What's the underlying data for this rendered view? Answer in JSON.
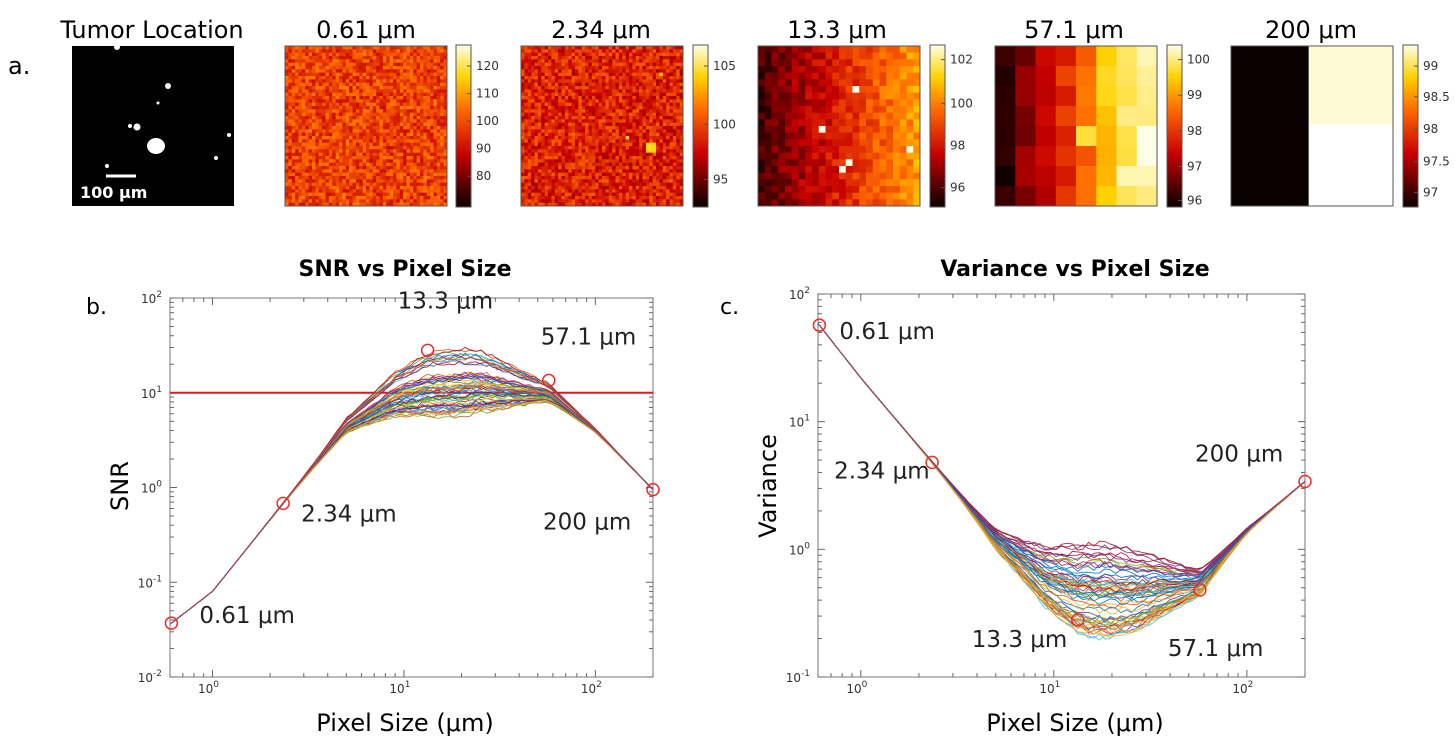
{
  "panel_labels": {
    "a": "a.",
    "b": "b.",
    "c": "c."
  },
  "maps": {
    "scale_bar_label": "100 μm",
    "items": [
      {
        "title": "Tumor Location",
        "colorbar_ticks": []
      },
      {
        "title": "0.61 μm",
        "colorbar_ticks": [
          "120",
          "110",
          "100",
          "90",
          "80"
        ]
      },
      {
        "title": "2.34 μm",
        "colorbar_ticks": [
          "105",
          "100",
          "95"
        ]
      },
      {
        "title": "13.3 μm",
        "colorbar_ticks": [
          "102",
          "100",
          "98",
          "96"
        ]
      },
      {
        "title": "57.1 μm",
        "colorbar_ticks": [
          "100",
          "99",
          "98",
          "97",
          "96"
        ]
      },
      {
        "title": "200 μm",
        "colorbar_ticks": [
          "99",
          "98.5",
          "98",
          "97.5",
          "97"
        ]
      }
    ]
  },
  "chart_data": [
    {
      "type": "line",
      "title": "SNR vs Pixel Size",
      "xlabel": "Pixel Size (μm)",
      "ylabel": "SNR",
      "xscale": "log",
      "yscale": "log",
      "xlim": [
        0.6,
        200
      ],
      "ylim": [
        0.01,
        100
      ],
      "xticks": [
        "10",
        "10",
        "10"
      ],
      "xtick_exps": [
        "0",
        "1",
        "2"
      ],
      "yticks": [
        "10",
        "10",
        "10",
        "10",
        "10"
      ],
      "ytick_exps": [
        "-2",
        "-1",
        "0",
        "1",
        "2"
      ],
      "threshold_line": 10,
      "curve_count": 60,
      "mean_curve": {
        "x": [
          0.61,
          1,
          2.34,
          5,
          9,
          13.3,
          25,
          57.1,
          100,
          200
        ],
        "y": [
          0.037,
          0.08,
          0.68,
          4.5,
          9.5,
          12,
          13,
          10,
          4,
          0.95
        ]
      },
      "markers": [
        {
          "x": 0.61,
          "y": 0.037,
          "label": "0.61 μm"
        },
        {
          "x": 2.34,
          "y": 0.68,
          "label": "2.34 μm"
        },
        {
          "x": 13.3,
          "y": 28,
          "label": "13.3 μm"
        },
        {
          "x": 57.1,
          "y": 13.5,
          "label": "57.1 μm"
        },
        {
          "x": 200,
          "y": 0.95,
          "label": "200 μm"
        }
      ]
    },
    {
      "type": "line",
      "title": "Variance vs Pixel Size",
      "xlabel": "Pixel Size (μm)",
      "ylabel": "Variance",
      "xscale": "log",
      "yscale": "log",
      "xlim": [
        0.6,
        200
      ],
      "ylim": [
        0.1,
        100
      ],
      "xticks": [
        "10",
        "10",
        "10"
      ],
      "xtick_exps": [
        "0",
        "1",
        "2"
      ],
      "yticks": [
        "10",
        "10",
        "10",
        "10"
      ],
      "ytick_exps": [
        "-1",
        "0",
        "1",
        "2"
      ],
      "curve_count": 60,
      "mean_curve": {
        "x": [
          0.61,
          1,
          2.34,
          5,
          9,
          13.3,
          25,
          57.1,
          100,
          200
        ],
        "y": [
          57,
          22,
          4.8,
          1.2,
          0.62,
          0.5,
          0.48,
          0.55,
          1.4,
          3.4
        ]
      },
      "markers": [
        {
          "x": 0.61,
          "y": 57,
          "label": "0.61 μm"
        },
        {
          "x": 2.34,
          "y": 4.8,
          "label": "2.34 μm"
        },
        {
          "x": 13.3,
          "y": 0.28,
          "label": "13.3 μm"
        },
        {
          "x": 57.1,
          "y": 0.48,
          "label": "57.1 μm"
        },
        {
          "x": 200,
          "y": 3.4,
          "label": "200 μm"
        }
      ]
    }
  ],
  "colors": {
    "marker": "#e8302a",
    "threshold": "#e8141a",
    "axis": "#777777"
  }
}
